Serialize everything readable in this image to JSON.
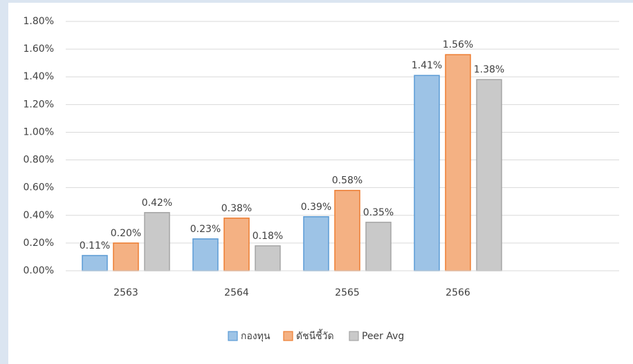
{
  "chart_data": {
    "type": "bar",
    "categories": [
      "2563",
      "2564",
      "2565",
      "2566"
    ],
    "series": [
      {
        "name": "กองทุน",
        "color": "#9dc3e6",
        "values": [
          0.11,
          0.23,
          0.39,
          1.41
        ],
        "value_labels": [
          "0.11%",
          "0.23%",
          "0.39%",
          "1.41%"
        ]
      },
      {
        "name": "ดัชนีชี้วัด",
        "color": "#f4b183",
        "values": [
          0.2,
          0.38,
          0.58,
          1.56
        ],
        "value_labels": [
          "0.20%",
          "0.38%",
          "0.58%",
          "1.56%"
        ]
      },
      {
        "name": "Peer Avg",
        "color": "#c9c9c9",
        "values": [
          0.42,
          0.18,
          0.35,
          1.38
        ],
        "value_labels": [
          "0.42%",
          "0.18%",
          "0.35%",
          "1.38%"
        ]
      }
    ],
    "ylim": [
      0,
      1.8
    ],
    "yticks": [
      {
        "value": 0,
        "label": "0.00%"
      },
      {
        "value": 0.2,
        "label": "0.20%"
      },
      {
        "value": 0.4,
        "label": "0.40%"
      },
      {
        "value": 0.6,
        "label": "0.60%"
      },
      {
        "value": 0.8,
        "label": "0.80%"
      },
      {
        "value": 1.0,
        "label": "1.00%"
      },
      {
        "value": 1.2,
        "label": "1.20%"
      },
      {
        "value": 1.4,
        "label": "1.40%"
      },
      {
        "value": 1.6,
        "label": "1.60%"
      },
      {
        "value": 1.8,
        "label": "1.80%"
      }
    ],
    "grid": true,
    "legend": "bottom"
  }
}
